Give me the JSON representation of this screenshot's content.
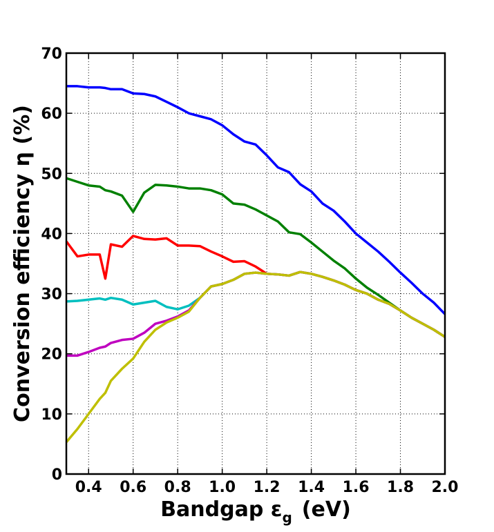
{
  "chart_data": {
    "type": "line",
    "xlabel": {
      "main": "Bandgap ε",
      "subscript": "g",
      "unit": "(eV)"
    },
    "ylabel": "Conversion efficiency η (%)",
    "x": [
      0.3,
      0.35,
      0.4,
      0.45,
      0.475,
      0.5,
      0.55,
      0.6,
      0.65,
      0.7,
      0.75,
      0.8,
      0.85,
      0.9,
      0.95,
      1.0,
      1.05,
      1.1,
      1.15,
      1.2,
      1.25,
      1.3,
      1.35,
      1.4,
      1.45,
      1.5,
      1.55,
      1.6,
      1.65,
      1.7,
      1.75,
      1.8,
      1.85,
      1.9,
      1.95,
      2.0
    ],
    "series": [
      {
        "color": "#0000ff",
        "values": [
          64.5,
          64.5,
          64.3,
          64.3,
          64.2,
          64.0,
          64.0,
          63.3,
          63.2,
          62.8,
          61.9,
          61.0,
          60.0,
          59.5,
          59.0,
          58.0,
          56.5,
          55.3,
          54.8,
          53.0,
          51.0,
          50.2,
          48.2,
          47.0,
          45.0,
          43.8,
          42.0,
          40.0,
          38.5,
          37.0,
          35.3,
          33.5,
          31.8,
          30.0,
          28.5,
          26.6
        ]
      },
      {
        "color": "#008000",
        "values": [
          49.2,
          48.6,
          48.0,
          47.8,
          47.2,
          47.0,
          46.3,
          43.6,
          46.8,
          48.1,
          48.0,
          47.8,
          47.5,
          47.5,
          47.2,
          46.5,
          45.0,
          44.8,
          44.0,
          43.0,
          42.0,
          40.2,
          39.9,
          38.5,
          37.0,
          35.5,
          34.2,
          32.5,
          31.0,
          29.8,
          28.5,
          27.2,
          26.0,
          25.0,
          24.0,
          22.8
        ]
      },
      {
        "color": "#ff0000",
        "values": [
          38.7,
          36.2,
          36.5,
          36.5,
          32.5,
          38.2,
          37.8,
          39.6,
          39.1,
          39.0,
          39.2,
          38.0,
          38.0,
          37.9,
          37.0,
          36.2,
          35.3,
          35.4,
          34.5,
          33.3,
          33.2,
          33.0,
          33.6,
          33.3,
          32.8,
          32.2,
          31.5,
          30.6,
          30.0,
          29.0,
          28.3,
          27.2,
          26.0,
          25.0,
          24.0,
          22.8
        ]
      },
      {
        "color": "#00bfbf",
        "values": [
          28.7,
          28.8,
          29.0,
          29.2,
          29.0,
          29.3,
          29.0,
          28.2,
          28.5,
          28.8,
          27.8,
          27.4,
          28.0,
          29.3,
          31.2,
          31.6,
          32.3,
          33.3,
          33.5,
          33.3,
          33.2,
          33.0,
          33.6,
          33.3,
          32.8,
          32.2,
          31.5,
          30.6,
          30.0,
          29.0,
          28.3,
          27.2,
          26.0,
          25.0,
          24.0,
          22.8
        ]
      },
      {
        "color": "#bf00bf",
        "values": [
          19.7,
          19.7,
          20.3,
          21.0,
          21.2,
          21.8,
          22.3,
          22.5,
          23.5,
          25.0,
          25.5,
          26.2,
          27.2,
          29.3,
          31.2,
          31.6,
          32.3,
          33.3,
          33.5,
          33.3,
          33.2,
          33.0,
          33.6,
          33.3,
          32.8,
          32.2,
          31.5,
          30.6,
          30.0,
          29.0,
          28.3,
          27.2,
          26.0,
          25.0,
          24.0,
          22.8
        ]
      },
      {
        "color": "#bfbf00",
        "values": [
          5.3,
          7.5,
          10.0,
          12.5,
          13.5,
          15.5,
          17.5,
          19.2,
          22.0,
          24.0,
          25.2,
          26.0,
          27.0,
          29.3,
          31.2,
          31.6,
          32.3,
          33.3,
          33.5,
          33.3,
          33.2,
          33.0,
          33.6,
          33.3,
          32.8,
          32.2,
          31.5,
          30.6,
          30.0,
          29.0,
          28.3,
          27.2,
          26.0,
          25.0,
          24.0,
          22.8
        ]
      }
    ],
    "xlim": [
      0.3,
      2.0
    ],
    "xticks": [
      0.4,
      0.6,
      0.8,
      {
        "value": 1,
        "label": "1.0"
      },
      1.2,
      1.4,
      1.6,
      1.8,
      {
        "value": 2,
        "label": "2.0"
      }
    ],
    "ylim": [
      0,
      70
    ],
    "yticks": [
      0,
      10,
      20,
      30,
      40,
      50,
      60,
      70
    ],
    "grid": true
  }
}
